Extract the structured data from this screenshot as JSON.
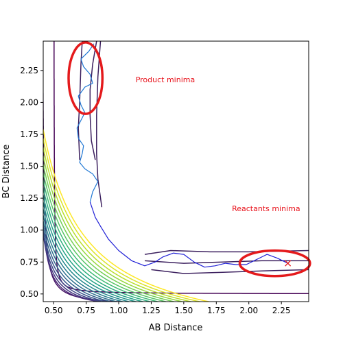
{
  "chart_data": {
    "type": "contour",
    "xlabel": "AB Distance",
    "ylabel": "BC Distance",
    "xlim": [
      0.42,
      2.46
    ],
    "ylim": [
      0.44,
      2.48
    ],
    "x_ticks": [
      0.5,
      0.75,
      1.0,
      1.25,
      1.5,
      1.75,
      2.0,
      2.25
    ],
    "x_tick_labels": [
      "0.50",
      "0.75",
      "1.00",
      "1.25",
      "1.50",
      "1.75",
      "2.00",
      "2.25"
    ],
    "y_ticks": [
      0.5,
      0.75,
      1.0,
      1.25,
      1.5,
      1.75,
      2.0,
      2.25
    ],
    "y_tick_labels": [
      "0.50",
      "0.75",
      "1.00",
      "1.25",
      "1.50",
      "1.75",
      "2.00",
      "2.25"
    ],
    "colormap": "viridis",
    "contour_level_count": 20,
    "grid": false,
    "annotations": [
      {
        "text": "Product minima",
        "x": 1.13,
        "y": 2.18,
        "color": "#e8121b"
      },
      {
        "text": "Reactants minima",
        "x": 1.87,
        "y": 1.17,
        "color": "#e8121b"
      }
    ],
    "highlight_ellipses": [
      {
        "name": "product-minima-ellipse",
        "cx": 0.745,
        "cy": 2.19,
        "rx": 0.13,
        "ry": 0.28,
        "color": "#e41a1c"
      },
      {
        "name": "reactants-minima-ellipse",
        "cx": 2.2,
        "cy": 0.74,
        "rx": 0.27,
        "ry": 0.1,
        "color": "#e41a1c"
      }
    ],
    "start_marker": {
      "x": 2.3,
      "y": 0.74,
      "symbol": "x",
      "color": "#e41a1c"
    },
    "trajectories": [
      {
        "name": "trajectory-reactant-side",
        "color": "#1f1fd6",
        "points": [
          [
            2.3,
            0.74
          ],
          [
            2.22,
            0.78
          ],
          [
            2.14,
            0.81
          ],
          [
            2.06,
            0.77
          ],
          [
            1.98,
            0.73
          ],
          [
            1.9,
            0.73
          ],
          [
            1.82,
            0.74
          ],
          [
            1.74,
            0.72
          ],
          [
            1.66,
            0.71
          ],
          [
            1.58,
            0.75
          ],
          [
            1.5,
            0.81
          ],
          [
            1.42,
            0.82
          ],
          [
            1.34,
            0.79
          ],
          [
            1.28,
            0.75
          ],
          [
            1.2,
            0.72
          ],
          [
            1.1,
            0.76
          ],
          [
            1.0,
            0.84
          ],
          [
            0.92,
            0.93
          ],
          [
            0.86,
            1.03
          ],
          [
            0.82,
            1.1
          ],
          [
            0.78,
            1.22
          ]
        ]
      },
      {
        "name": "trajectory-product-side",
        "color": "#1f77d4",
        "points": [
          [
            0.78,
            1.22
          ],
          [
            0.8,
            1.3
          ],
          [
            0.84,
            1.38
          ],
          [
            0.8,
            1.44
          ],
          [
            0.74,
            1.48
          ],
          [
            0.7,
            1.53
          ],
          [
            0.72,
            1.6
          ],
          [
            0.73,
            1.66
          ],
          [
            0.69,
            1.72
          ],
          [
            0.68,
            1.8
          ],
          [
            0.71,
            1.86
          ],
          [
            0.74,
            1.92
          ],
          [
            0.71,
            1.98
          ],
          [
            0.69,
            2.05
          ],
          [
            0.74,
            2.12
          ],
          [
            0.8,
            2.15
          ],
          [
            0.78,
            2.22
          ],
          [
            0.73,
            2.28
          ],
          [
            0.71,
            2.34
          ],
          [
            0.77,
            2.4
          ],
          [
            0.81,
            2.46
          ]
        ]
      }
    ]
  }
}
